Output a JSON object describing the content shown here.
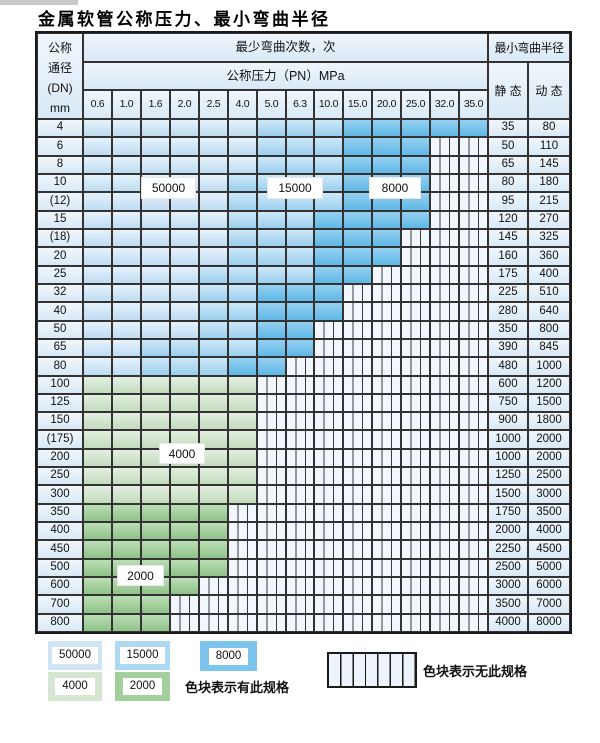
{
  "title": "金属软管公称压力、最小弯曲半径",
  "table": {
    "dn_header_lines": [
      "公称",
      "通径",
      "(DN)",
      "mm"
    ],
    "cycles_header": "最少弯曲次数，次",
    "pressure_header": "公称压力（PN）MPa",
    "radius_header": "最小弯曲半径",
    "static_header": "静 态",
    "dynamic_header": "动 态",
    "pressure_columns": [
      "0.6",
      "1.0",
      "1.6",
      "2.0",
      "2.5",
      "4.0",
      "5.0",
      "6.3",
      "10.0",
      "15.0",
      "20.0",
      "25.0",
      "32.0",
      "35.0"
    ],
    "rows": [
      {
        "dn": "4",
        "static": "35",
        "dynamic": "80",
        "bands": [
          [
            "50000",
            6
          ],
          [
            "15000",
            3
          ],
          [
            "8000",
            5
          ]
        ]
      },
      {
        "dn": "6",
        "static": "50",
        "dynamic": "110",
        "bands": [
          [
            "50000",
            6
          ],
          [
            "15000",
            3
          ],
          [
            "8000",
            3
          ]
        ]
      },
      {
        "dn": "8",
        "static": "65",
        "dynamic": "145",
        "bands": [
          [
            "50000",
            6
          ],
          [
            "15000",
            3
          ],
          [
            "8000",
            3
          ]
        ]
      },
      {
        "dn": "10",
        "static": "80",
        "dynamic": "180",
        "bands": [
          [
            "50000",
            5
          ],
          [
            "15000",
            4
          ],
          [
            "8000",
            3
          ]
        ]
      },
      {
        "dn": "(12)",
        "static": "95",
        "dynamic": "215",
        "bands": [
          [
            "50000",
            5
          ],
          [
            "15000",
            4
          ],
          [
            "8000",
            3
          ]
        ]
      },
      {
        "dn": "15",
        "static": "120",
        "dynamic": "270",
        "bands": [
          [
            "50000",
            5
          ],
          [
            "15000",
            3
          ],
          [
            "8000",
            4
          ]
        ]
      },
      {
        "dn": "(18)",
        "static": "145",
        "dynamic": "325",
        "bands": [
          [
            "50000",
            5
          ],
          [
            "15000",
            3
          ],
          [
            "8000",
            3
          ]
        ]
      },
      {
        "dn": "20",
        "static": "160",
        "dynamic": "360",
        "bands": [
          [
            "50000",
            5
          ],
          [
            "15000",
            3
          ],
          [
            "8000",
            3
          ]
        ]
      },
      {
        "dn": "25",
        "static": "175",
        "dynamic": "400",
        "bands": [
          [
            "50000",
            4
          ],
          [
            "15000",
            4
          ],
          [
            "8000",
            2
          ]
        ]
      },
      {
        "dn": "32",
        "static": "225",
        "dynamic": "510",
        "bands": [
          [
            "50000",
            4
          ],
          [
            "15000",
            2
          ],
          [
            "8000",
            3
          ]
        ]
      },
      {
        "dn": "40",
        "static": "280",
        "dynamic": "640",
        "bands": [
          [
            "50000",
            4
          ],
          [
            "15000",
            2
          ],
          [
            "8000",
            3
          ]
        ]
      },
      {
        "dn": "50",
        "static": "350",
        "dynamic": "800",
        "bands": [
          [
            "50000",
            4
          ],
          [
            "15000",
            2
          ],
          [
            "8000",
            2
          ]
        ]
      },
      {
        "dn": "65",
        "static": "390",
        "dynamic": "845",
        "bands": [
          [
            "50000",
            2
          ],
          [
            "15000",
            4
          ],
          [
            "8000",
            2
          ]
        ]
      },
      {
        "dn": "80",
        "static": "480",
        "dynamic": "1000",
        "bands": [
          [
            "50000",
            2
          ],
          [
            "15000",
            3
          ],
          [
            "8000",
            2
          ]
        ]
      },
      {
        "dn": "100",
        "static": "600",
        "dynamic": "1200",
        "bands": [
          [
            "4000",
            6
          ]
        ]
      },
      {
        "dn": "125",
        "static": "750",
        "dynamic": "1500",
        "bands": [
          [
            "4000",
            6
          ]
        ]
      },
      {
        "dn": "150",
        "static": "900",
        "dynamic": "1800",
        "bands": [
          [
            "4000",
            6
          ]
        ]
      },
      {
        "dn": "(175)",
        "static": "1000",
        "dynamic": "2000",
        "bands": [
          [
            "4000",
            6
          ]
        ]
      },
      {
        "dn": "200",
        "static": "1000",
        "dynamic": "2000",
        "bands": [
          [
            "4000",
            6
          ]
        ]
      },
      {
        "dn": "250",
        "static": "1250",
        "dynamic": "2500",
        "bands": [
          [
            "4000",
            6
          ]
        ]
      },
      {
        "dn": "300",
        "static": "1500",
        "dynamic": "3000",
        "bands": [
          [
            "4000",
            6
          ]
        ]
      },
      {
        "dn": "350",
        "static": "1750",
        "dynamic": "3500",
        "bands": [
          [
            "2000",
            5
          ]
        ]
      },
      {
        "dn": "400",
        "static": "2000",
        "dynamic": "4000",
        "bands": [
          [
            "2000",
            5
          ]
        ]
      },
      {
        "dn": "450",
        "static": "2250",
        "dynamic": "4500",
        "bands": [
          [
            "2000",
            5
          ]
        ]
      },
      {
        "dn": "500",
        "static": "2500",
        "dynamic": "5000",
        "bands": [
          [
            "2000",
            5
          ]
        ]
      },
      {
        "dn": "600",
        "static": "3000",
        "dynamic": "6000",
        "bands": [
          [
            "2000",
            4
          ]
        ]
      },
      {
        "dn": "700",
        "static": "3500",
        "dynamic": "7000",
        "bands": [
          [
            "2000",
            3
          ]
        ]
      },
      {
        "dn": "800",
        "static": "4000",
        "dynamic": "8000",
        "bands": [
          [
            "2000",
            3
          ]
        ]
      }
    ]
  },
  "band_colors": {
    "50000": "#cfe5f6",
    "15000": "#aed9f3",
    "8000": "#7cc5ed",
    "4000": "#d5e7d1",
    "2000": "#a3cf9d"
  },
  "band_labels_overlay": [
    "50000",
    "15000",
    "8000",
    "4000",
    "2000"
  ],
  "legend": {
    "present_items": [
      "50000",
      "15000",
      "8000",
      "4000",
      "2000"
    ],
    "present_label": "色块表示有此规格",
    "absent_label": "色块表示无此规格"
  }
}
